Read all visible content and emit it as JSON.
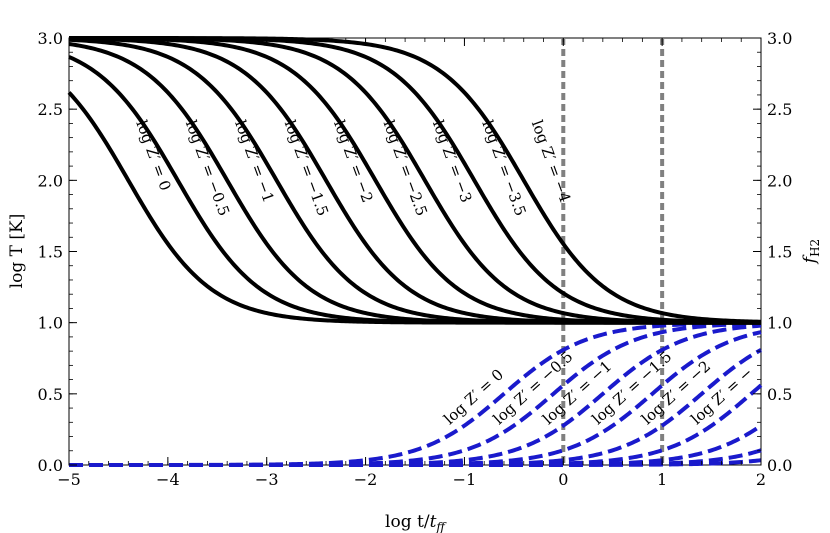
{
  "chart_data": {
    "type": "line",
    "xlabel": "log t/t_ff",
    "ylabel_left": "log T [K]",
    "ylabel_right": "f_H2",
    "xlim": [
      -5,
      2
    ],
    "ylim_left": [
      0,
      3
    ],
    "ylim_right": [
      0,
      3
    ],
    "x_ticks": [
      -5,
      -4,
      -3,
      -2,
      -1,
      0,
      1,
      2
    ],
    "x_tick_labels": [
      "−5",
      "−4",
      "−3",
      "−2",
      "−1",
      "0",
      "1",
      "2"
    ],
    "y_ticks": [
      0,
      0.5,
      1,
      1.5,
      2,
      2.5,
      3
    ],
    "y_tick_labels": [
      "0.0",
      "0.5",
      "1.0",
      "1.5",
      "2.0",
      "2.5",
      "3.0"
    ],
    "grid": false,
    "legend": "none",
    "reference_lines_x": [
      0,
      1
    ],
    "colors": {
      "temperature": "#000000",
      "fh2": "#1a1acc",
      "reference": "#808080"
    },
    "temperature_series": [
      {
        "label": "log Z′ = 0",
        "midpoint_x": -4.4,
        "values_note": ""
      },
      {
        "label": "log Z′ = −0.5",
        "midpoint_x": -3.9
      },
      {
        "label": "log Z′ = −1",
        "midpoint_x": -3.4
      },
      {
        "label": "log Z′ = −1.5",
        "midpoint_x": -2.9
      },
      {
        "label": "log Z′ = −2",
        "midpoint_x": -2.4
      },
      {
        "label": "log Z′ = −2.5",
        "midpoint_x": -1.9
      },
      {
        "label": "log Z′ = −3",
        "midpoint_x": -1.4
      },
      {
        "label": "log Z′ = −3.5",
        "midpoint_x": -0.9
      },
      {
        "label": "log Z′ = −4",
        "midpoint_x": -0.4
      }
    ],
    "temperature_high": 3.0,
    "temperature_low": 1.0,
    "fh2_series": [
      {
        "label": "log Z′ = 0",
        "midpoint_x": -0.6
      },
      {
        "label": "log Z′ = −0.5",
        "midpoint_x": -0.1
      },
      {
        "label": "log Z′ = −1",
        "midpoint_x": 0.4
      },
      {
        "label": "log Z′ = −1.5",
        "midpoint_x": 0.9
      },
      {
        "label": "log Z′ = −2",
        "midpoint_x": 1.4
      },
      {
        "label": "log Z′ = −",
        "midpoint_x": 1.9
      },
      {
        "label": "",
        "midpoint_x": 2.4
      },
      {
        "label": "",
        "midpoint_x": 2.9
      },
      {
        "label": "",
        "midpoint_x": 3.4
      }
    ],
    "fh2_high": 1.0,
    "fh2_low": 0.0
  }
}
